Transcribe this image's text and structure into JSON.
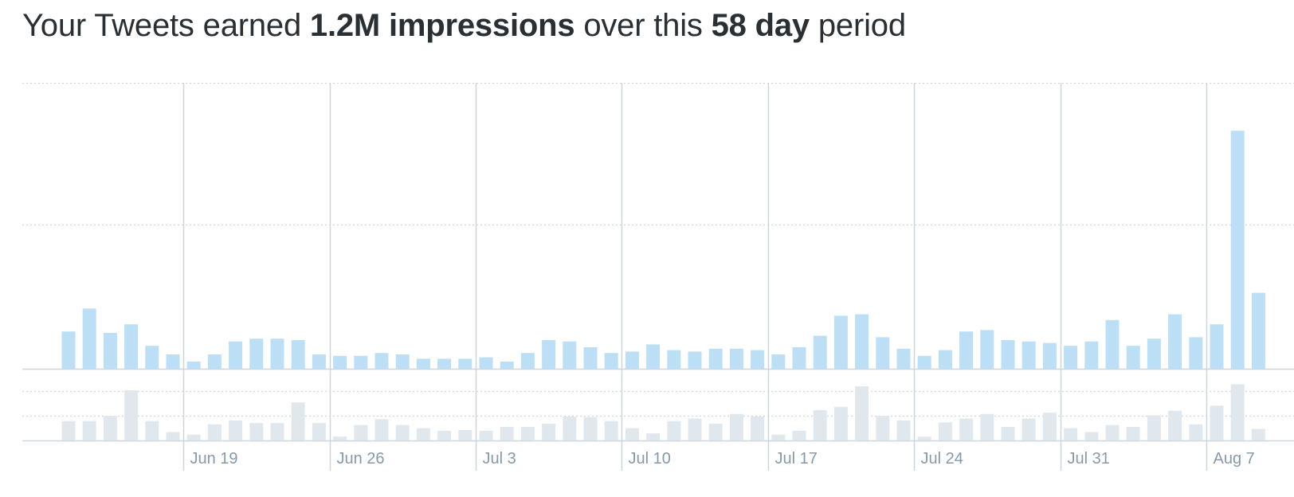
{
  "header": {
    "prefix": "Your Tweets earned",
    "impressions_value": "1.2M impressions",
    "middle": "over this",
    "period_value": "58 day",
    "suffix": "period"
  },
  "colors": {
    "impressions_bar": "#bcdff5",
    "engagements_bar": "#e1e8ed",
    "grid": "#ccd6dd",
    "tick_text": "#8899a6"
  },
  "chart_data": {
    "type": "bar",
    "x_tick_labels": [
      "Jun 19",
      "Jun 26",
      "Jul 3",
      "Jul 10",
      "Jul 17",
      "Jul 24",
      "Jul 31",
      "Aug 7"
    ],
    "first_tick_index": 6,
    "tick_every_days": 7,
    "grid": true,
    "series": [
      {
        "key": "impressions",
        "ylim": [
          0,
          100
        ],
        "values": [
          13,
          21,
          12.5,
          15.5,
          8,
          5,
          2.5,
          5,
          9.5,
          10.5,
          10.5,
          10,
          5,
          4.5,
          4.5,
          5.5,
          5,
          3.5,
          3.5,
          3.5,
          4,
          2.5,
          5.5,
          10,
          9.5,
          7.5,
          5.5,
          6,
          8.5,
          6.5,
          6,
          7,
          7,
          6.5,
          5,
          7.5,
          11.5,
          18.5,
          19,
          11,
          7,
          4.5,
          6.5,
          13,
          13.5,
          10,
          9.5,
          9,
          8,
          9.5,
          17,
          8,
          10.5,
          19,
          11,
          15.5,
          83,
          26.5
        ]
      },
      {
        "key": "engagements",
        "ylim": [
          0,
          100
        ],
        "values": [
          30,
          30,
          38,
          78,
          30,
          13,
          9,
          25,
          31,
          27,
          27,
          59,
          27,
          6,
          24,
          33,
          24,
          19,
          15,
          16,
          15,
          21,
          21,
          26,
          37,
          36,
          30,
          19,
          11,
          30,
          34,
          26,
          41,
          37,
          9,
          15,
          47,
          52,
          84,
          38,
          31,
          6,
          28,
          34,
          41,
          21,
          34,
          43,
          19,
          13,
          24,
          21,
          39,
          46,
          25,
          54,
          87,
          18
        ]
      }
    ]
  }
}
